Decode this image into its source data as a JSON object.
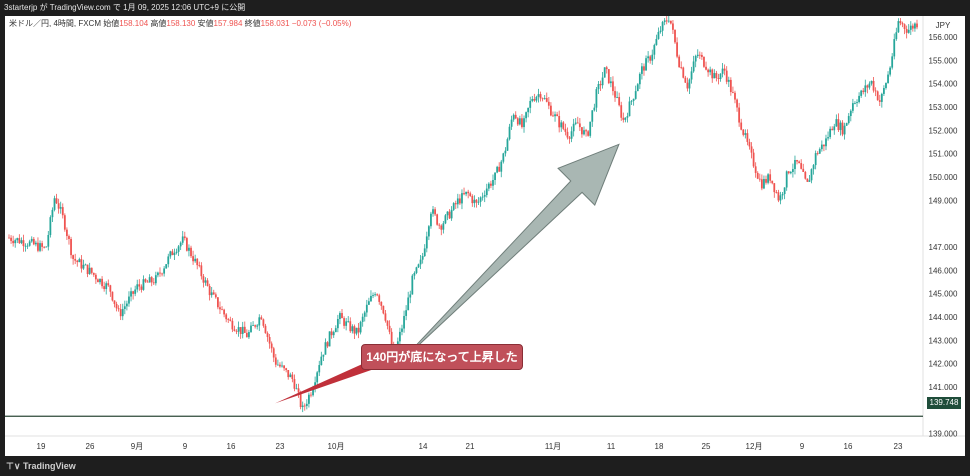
{
  "header": {
    "attribution": "3starterjp が TradingView.com で 1月 09, 2025 12:06 UTC+9 に公開"
  },
  "legend": {
    "symbol": "米ドル／円, 4時間, FXCM",
    "open_label": "始値",
    "open_value": "158.104",
    "high_label": "高値",
    "high_value": "158.130",
    "low_label": "安値",
    "low_value": "157.984",
    "close_label": "終値",
    "close_value": "158.031",
    "change": "−0.073 (−0.05%)"
  },
  "annotation": {
    "text": "140円が底になって上昇した"
  },
  "footer": {
    "brand": "TradingView"
  },
  "colors": {
    "up": "#26a69a",
    "down": "#ef5350",
    "arrow_fill": "#a9b7b3",
    "arrow_stroke": "#6f7e7a",
    "support_line": "#2e4a3a",
    "callout_fill": "#c0505a",
    "callout_pointer": "#c0303a"
  },
  "chart_data": {
    "type": "candlestick",
    "currency_label": "JPY",
    "y_ticks": [
      "156.000",
      "155.000",
      "154.000",
      "153.000",
      "152.000",
      "151.000",
      "150.000",
      "149.000",
      "147.000",
      "146.000",
      "145.000",
      "144.000",
      "143.000",
      "142.000",
      "141.000",
      "139.000"
    ],
    "y_tick_values": [
      156,
      155,
      154,
      153,
      152,
      151,
      150,
      149,
      147,
      146,
      145,
      144,
      143,
      142,
      141,
      139
    ],
    "ylim": [
      138.9,
      156.9
    ],
    "x_ticks": [
      "19",
      "26",
      "9月",
      "9",
      "16",
      "23",
      "10月",
      "14",
      "21",
      "11月",
      "11",
      "18",
      "25",
      "12月",
      "9",
      "16",
      "23"
    ],
    "last_price": "139.748",
    "support_level": 139.748,
    "path_points": [
      [
        0,
        147.4
      ],
      [
        4,
        147.2
      ],
      [
        8,
        146.9
      ],
      [
        10,
        149.2
      ],
      [
        12,
        148.1
      ],
      [
        14,
        146.5
      ],
      [
        18,
        145.9
      ],
      [
        22,
        145.2
      ],
      [
        24,
        144.1
      ],
      [
        28,
        145.3
      ],
      [
        32,
        145.6
      ],
      [
        36,
        146.9
      ],
      [
        38,
        147.3
      ],
      [
        40,
        146.6
      ],
      [
        44,
        145.0
      ],
      [
        48,
        143.8
      ],
      [
        52,
        143.2
      ],
      [
        55,
        144.1
      ],
      [
        58,
        142.1
      ],
      [
        62,
        141.3
      ],
      [
        64,
        140.0
      ],
      [
        66,
        140.9
      ],
      [
        68,
        142.3
      ],
      [
        70,
        143.2
      ],
      [
        72,
        144.0
      ],
      [
        74,
        143.6
      ],
      [
        76,
        143.3
      ],
      [
        78,
        144.4
      ],
      [
        80,
        145.2
      ],
      [
        82,
        144.1
      ],
      [
        84,
        142.3
      ],
      [
        86,
        143.8
      ],
      [
        88,
        145.6
      ],
      [
        90,
        146.4
      ],
      [
        92,
        148.6
      ],
      [
        94,
        147.9
      ],
      [
        96,
        148.4
      ],
      [
        98,
        149.0
      ],
      [
        100,
        149.3
      ],
      [
        102,
        148.8
      ],
      [
        104,
        149.5
      ],
      [
        106,
        150.0
      ],
      [
        108,
        151.0
      ],
      [
        110,
        152.8
      ],
      [
        112,
        152.1
      ],
      [
        114,
        153.4
      ],
      [
        116,
        153.6
      ],
      [
        118,
        152.9
      ],
      [
        120,
        152.3
      ],
      [
        122,
        151.8
      ],
      [
        124,
        152.3
      ],
      [
        126,
        151.7
      ],
      [
        128,
        153.5
      ],
      [
        130,
        154.6
      ],
      [
        132,
        153.6
      ],
      [
        134,
        152.4
      ],
      [
        136,
        153.4
      ],
      [
        138,
        154.6
      ],
      [
        140,
        155.2
      ],
      [
        142,
        156.3
      ],
      [
        144,
        156.9
      ],
      [
        146,
        155.0
      ],
      [
        148,
        153.9
      ],
      [
        150,
        155.3
      ],
      [
        152,
        154.8
      ],
      [
        154,
        154.2
      ],
      [
        156,
        154.6
      ],
      [
        158,
        153.4
      ],
      [
        160,
        152.0
      ],
      [
        162,
        150.8
      ],
      [
        164,
        149.7
      ],
      [
        166,
        150.0
      ],
      [
        168,
        149.0
      ],
      [
        170,
        150.3
      ],
      [
        172,
        150.6
      ],
      [
        174,
        149.6
      ],
      [
        176,
        151.0
      ],
      [
        178,
        151.5
      ],
      [
        180,
        152.4
      ],
      [
        182,
        152.0
      ],
      [
        184,
        153.2
      ],
      [
        186,
        153.6
      ],
      [
        188,
        154.1
      ],
      [
        190,
        153.2
      ],
      [
        192,
        154.6
      ],
      [
        194,
        156.7
      ],
      [
        196,
        156.3
      ],
      [
        198,
        156.6
      ]
    ],
    "arrow_up": {
      "from": [
        85,
        142.0
      ],
      "to": [
        133,
        151.4
      ]
    },
    "arrow_callout": {
      "from": [
        58,
        140.3
      ],
      "to": [
        79,
        141.9
      ]
    }
  }
}
